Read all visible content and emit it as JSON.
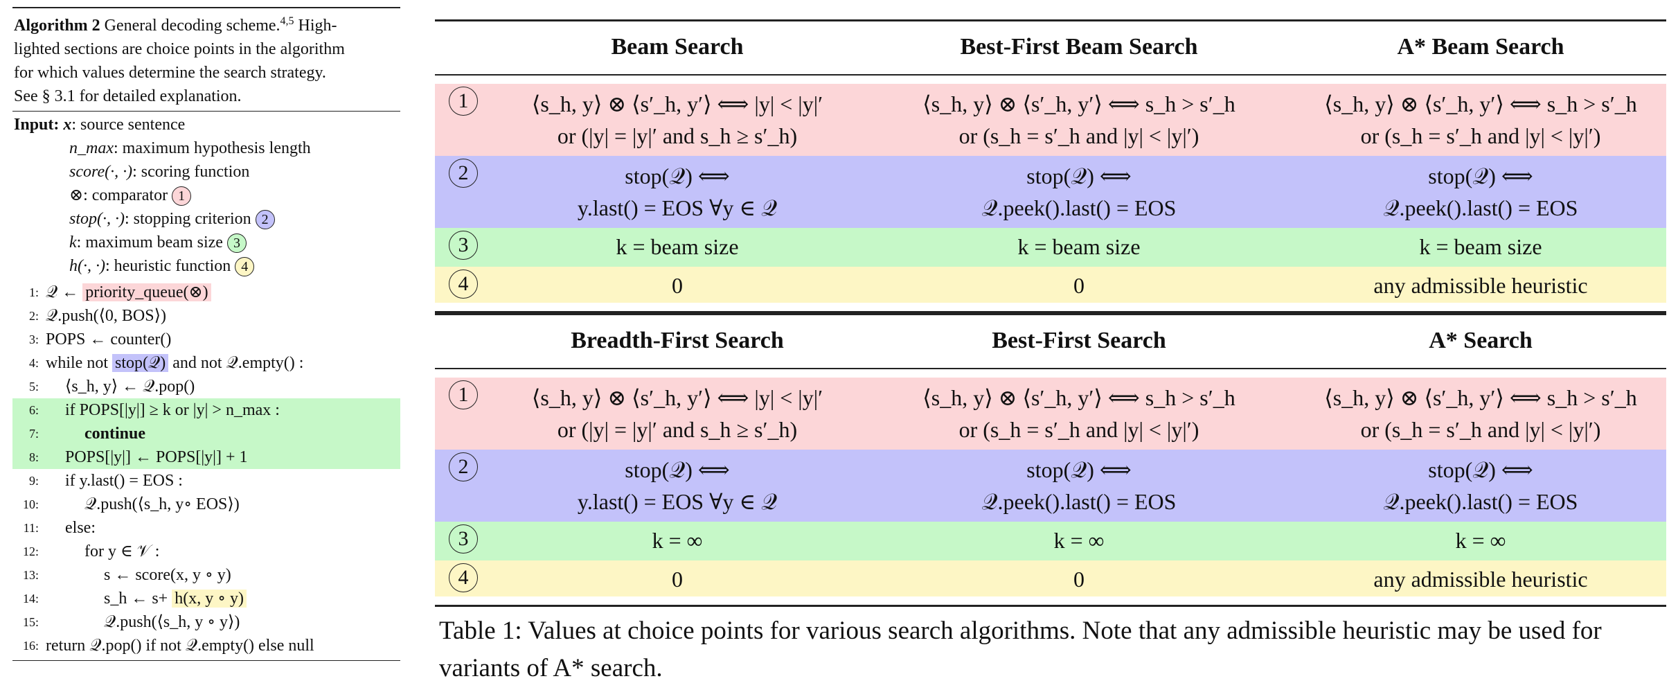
{
  "algorithm": {
    "label": "Algorithm 2",
    "caption_lines": [
      "General decoding scheme.",
      "lighted sections are choice points in the algorithm",
      "for which values determine the search strategy.",
      "See § 3.1 for detailed explanation."
    ],
    "caption_sup": "4,5",
    "caption_tail": "High-",
    "input_label": "Input:",
    "inputs": [
      {
        "sym": "x",
        "desc": ": source sentence"
      },
      {
        "sym": "n_max",
        "desc": ": maximum hypothesis length"
      },
      {
        "sym": "score(·, ·)",
        "desc": ": scoring function"
      },
      {
        "sym": "⊗",
        "desc": ": comparator",
        "badge": "1"
      },
      {
        "sym": "stop(·, ·)",
        "desc": ": stopping criterion",
        "badge": "2"
      },
      {
        "sym": "k",
        "desc": ": maximum beam size",
        "badge": "3"
      },
      {
        "sym": "h(·, ·)",
        "desc": ": heuristic function",
        "badge": "4"
      }
    ],
    "lines": [
      {
        "no": "1:",
        "pre": "𝒬 ← ",
        "hl": "priority_queue(⊗)",
        "post": ""
      },
      {
        "no": "2:",
        "pre": "𝒬.push(⟨0, BOS⟩)",
        "hl": "",
        "post": ""
      },
      {
        "no": "3:",
        "pre": "POPS ← counter()",
        "hl": "",
        "post": ""
      },
      {
        "no": "4:",
        "pre": "while not ",
        "hl": "stop(𝒬)",
        "post": " and not 𝒬.empty() :"
      },
      {
        "no": "5:",
        "pre": "⟨s_h, y⟩ ← 𝒬.pop()",
        "hl": "",
        "post": ""
      },
      {
        "no": "6:",
        "pre": "if POPS[|y|] ≥ k or |y| > n_max :",
        "hl": "",
        "post": ""
      },
      {
        "no": "7:",
        "pre": "continue",
        "hl": "",
        "post": ""
      },
      {
        "no": "8:",
        "pre": "POPS[|y|] ← POPS[|y|] + 1",
        "hl": "",
        "post": ""
      },
      {
        "no": "9:",
        "pre": "if y.last() = EOS :",
        "hl": "",
        "post": ""
      },
      {
        "no": "10:",
        "pre": "𝒬.push(⟨s_h, y∘ EOS⟩)",
        "hl": "",
        "post": ""
      },
      {
        "no": "11:",
        "pre": "else:",
        "hl": "",
        "post": ""
      },
      {
        "no": "12:",
        "pre": "for y ∈ 𝒱 :",
        "hl": "",
        "post": ""
      },
      {
        "no": "13:",
        "pre": "s ← score(x, y ∘ y)",
        "hl": "",
        "post": ""
      },
      {
        "no": "14:",
        "pre": "s_h ← s+ ",
        "hl": "h(x, y ∘ y)",
        "post": ""
      },
      {
        "no": "15:",
        "pre": "𝒬.push(⟨s_h, y ∘ y⟩)",
        "hl": "",
        "post": ""
      },
      {
        "no": "16:",
        "pre": "return 𝒬.pop() if not 𝒬.empty() else null",
        "hl": "",
        "post": ""
      }
    ]
  },
  "tables": [
    {
      "headers": [
        "Beam Search",
        "Best-First Beam Search",
        "A* Beam Search"
      ],
      "rows": [
        {
          "badge": "1",
          "cells": [
            [
              "⟨s_h, y⟩ ⊗ ⟨s′_h, y′⟩ ⟺ |y| < |y|′",
              "or (|y| = |y|′ and s_h ≥ s′_h)"
            ],
            [
              "⟨s_h, y⟩ ⊗ ⟨s′_h, y′⟩ ⟺ s_h > s′_h",
              "or (s_h = s′_h and |y| < |y|′)"
            ],
            [
              "⟨s_h, y⟩ ⊗ ⟨s′_h, y′⟩ ⟺ s_h > s′_h",
              "or (s_h = s′_h and |y| < |y|′)"
            ]
          ]
        },
        {
          "badge": "2",
          "cells": [
            [
              "stop(𝒬) ⟺",
              "y.last() = EOS  ∀y ∈ 𝒬"
            ],
            [
              "stop(𝒬) ⟺",
              "𝒬.peek().last() = EOS"
            ],
            [
              "stop(𝒬) ⟺",
              "𝒬.peek().last() = EOS"
            ]
          ]
        },
        {
          "badge": "3",
          "cells": [
            [
              "k = beam size"
            ],
            [
              "k = beam size"
            ],
            [
              "k = beam size"
            ]
          ]
        },
        {
          "badge": "4",
          "cells": [
            [
              "0"
            ],
            [
              "0"
            ],
            [
              "any admissible heuristic"
            ]
          ]
        }
      ]
    },
    {
      "headers": [
        "Breadth-First Search",
        "Best-First Search",
        "A* Search"
      ],
      "rows": [
        {
          "badge": "1",
          "cells": [
            [
              "⟨s_h, y⟩ ⊗ ⟨s′_h, y′⟩ ⟺ |y| < |y|′",
              "or (|y| = |y|′ and s_h ≥ s′_h)"
            ],
            [
              "⟨s_h, y⟩ ⊗ ⟨s′_h, y′⟩ ⟺ s_h > s′_h",
              "or (s_h = s′_h and |y| < |y|′)"
            ],
            [
              "⟨s_h, y⟩ ⊗ ⟨s′_h, y′⟩ ⟺ s_h > s′_h",
              "or (s_h = s′_h and |y| < |y|′)"
            ]
          ]
        },
        {
          "badge": "2",
          "cells": [
            [
              "stop(𝒬) ⟺",
              "y.last() = EOS  ∀y ∈ 𝒬"
            ],
            [
              "stop(𝒬) ⟺",
              "𝒬.peek().last() = EOS"
            ],
            [
              "stop(𝒬) ⟺",
              "𝒬.peek().last() = EOS"
            ]
          ]
        },
        {
          "badge": "3",
          "cells": [
            [
              "k = ∞"
            ],
            [
              "k = ∞"
            ],
            [
              "k = ∞"
            ]
          ]
        },
        {
          "badge": "4",
          "cells": [
            [
              "0"
            ],
            [
              "0"
            ],
            [
              "any admissible heuristic"
            ]
          ]
        }
      ]
    }
  ],
  "table_caption": "Table 1: Values at choice points for various search algorithms. Note that any admissible heuristic may be used for variants of A* search."
}
